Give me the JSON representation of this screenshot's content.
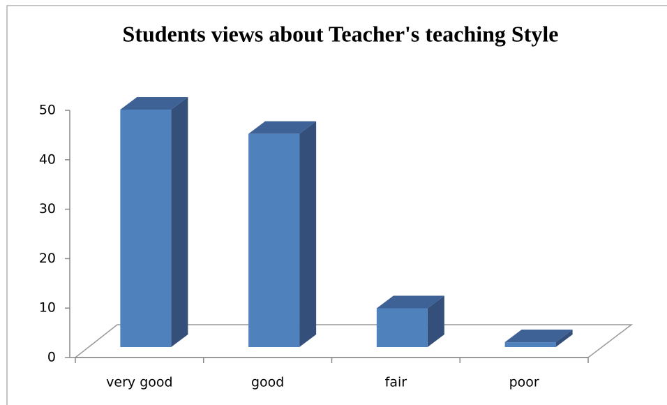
{
  "chart_data": {
    "type": "bar3d",
    "title": "Students views about Teacher's teaching Style",
    "categories": [
      "very good",
      "good",
      "fair",
      "poor"
    ],
    "values": [
      49,
      44,
      8,
      1
    ],
    "color": "#4f81bd",
    "ylim": [
      0,
      50
    ],
    "yticks": [
      0,
      10,
      20,
      30,
      40,
      50
    ]
  }
}
